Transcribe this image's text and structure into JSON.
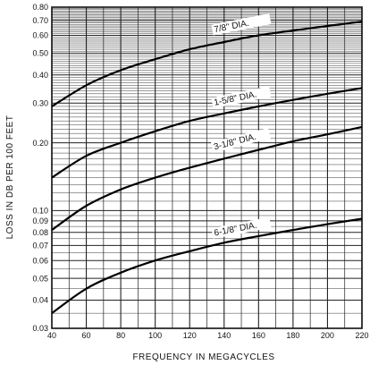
{
  "chart_data": {
    "type": "line",
    "xlabel": "FREQUENCY IN MEGACYCLES",
    "ylabel": "LOSS IN DB PER 100 FEET",
    "xlim": [
      40,
      220
    ],
    "ylim": [
      0.03,
      0.8
    ],
    "y_scale": "log",
    "grid": true,
    "x_ticks": [
      40,
      60,
      80,
      100,
      120,
      140,
      160,
      180,
      200,
      220
    ],
    "x_tick_labels": [
      "40",
      "60",
      "80",
      "100",
      "120",
      "140",
      "160",
      "180",
      "200",
      "220"
    ],
    "y_ticks": [
      0.03,
      0.04,
      0.05,
      0.06,
      0.07,
      0.08,
      0.09,
      0.1,
      0.2,
      0.3,
      0.4,
      0.5,
      0.6,
      0.7,
      0.8
    ],
    "y_tick_labels": [
      "0.03",
      "0.04",
      "0.05",
      "0.06",
      "0.07",
      "0.08",
      "0.09",
      "0.10",
      "0.20",
      "0.30",
      "0.40",
      "0.50",
      "0.60",
      "0.70",
      "0.80"
    ],
    "x": [
      40,
      60,
      80,
      100,
      120,
      140,
      160,
      180,
      200,
      220
    ],
    "series": [
      {
        "label": "7/8\" DIA.",
        "values": [
          0.29,
          0.36,
          0.42,
          0.47,
          0.52,
          0.56,
          0.6,
          0.63,
          0.66,
          0.69
        ]
      },
      {
        "label": "1-5/8\" DIA.",
        "values": [
          0.14,
          0.175,
          0.2,
          0.225,
          0.25,
          0.27,
          0.29,
          0.31,
          0.33,
          0.35
        ]
      },
      {
        "label": "3-1/8\" DIA.",
        "values": [
          0.082,
          0.105,
          0.124,
          0.14,
          0.155,
          0.17,
          0.186,
          0.203,
          0.218,
          0.235
        ]
      },
      {
        "label": "6-1/8\" DIA.",
        "values": [
          0.035,
          0.045,
          0.053,
          0.06,
          0.066,
          0.072,
          0.077,
          0.082,
          0.087,
          0.092
        ]
      }
    ]
  }
}
